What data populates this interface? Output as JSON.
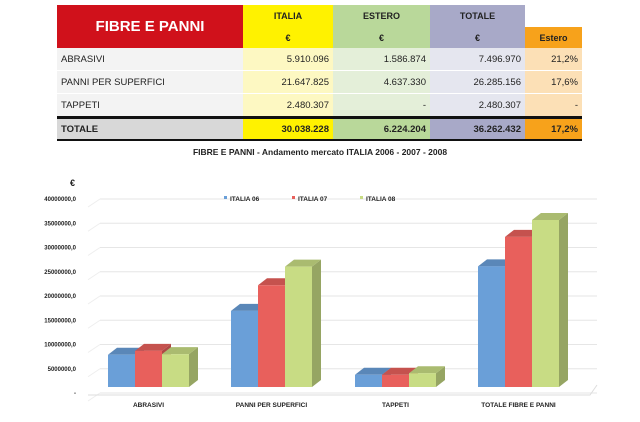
{
  "table": {
    "title": "FIBRE E PANNI",
    "columns": [
      "ITALIA",
      "ESTERO",
      "TOTALE"
    ],
    "units": [
      "€",
      "€",
      "€",
      "Estero"
    ],
    "rows": [
      {
        "label": "ABRASIVI",
        "italia": "5.910.096",
        "estero": "1.586.874",
        "totale": "7.496.970",
        "pct": "21,2%"
      },
      {
        "label": "PANNI PER SUPERFICI",
        "italia": "21.647.825",
        "estero": "4.637.330",
        "totale": "26.285.156",
        "pct": "17,6%"
      },
      {
        "label": "TAPPETI",
        "italia": "2.480.307",
        "estero": "-",
        "totale": "2.480.307",
        "pct": "-"
      }
    ],
    "total": {
      "label": "TOTALE",
      "italia": "30.038.228",
      "estero": "6.224.204",
      "totale": "36.262.432",
      "pct": "17,2%"
    }
  },
  "chart_data": {
    "type": "bar",
    "title": "FIBRE E PANNI - Andamento mercato ITALIA 2006 - 2007 - 2008",
    "ylabel": "€",
    "categories": [
      "ABRASIVI",
      "PANNI PER SUPERFICI",
      "TAPPETI",
      "TOTALE FIBRE E PANNI"
    ],
    "series": [
      {
        "name": "ITALIA 06",
        "color": "#6a9fd8",
        "values": [
          5800000,
          13700000,
          2200000,
          21700000
        ]
      },
      {
        "name": "ITALIA 07",
        "color": "#e8605c",
        "values": [
          6500000,
          18300000,
          2200000,
          27000000
        ]
      },
      {
        "name": "ITALIA 08",
        "color": "#c8dc84",
        "values": [
          5910096,
          21647825,
          2480307,
          30038228
        ]
      }
    ],
    "ylim": [
      0,
      40000000
    ],
    "yticks": [
      "-",
      "5000000,0",
      "10000000,0",
      "15000000,0",
      "20000000,0",
      "25000000,0",
      "30000000,0",
      "35000000,0",
      "40000000,0"
    ],
    "grid": true,
    "legend": "top-center",
    "style": "3d"
  }
}
